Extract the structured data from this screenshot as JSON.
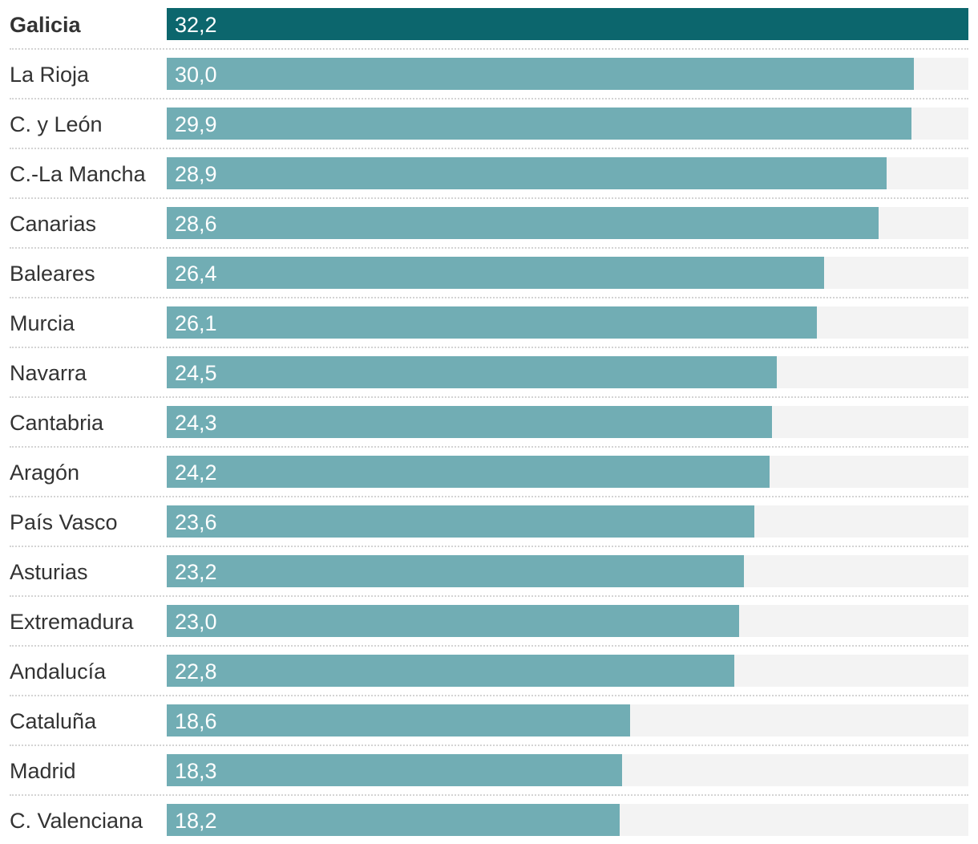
{
  "chart_data": {
    "type": "bar",
    "orientation": "horizontal",
    "highlight_category": "Galicia",
    "categories": [
      "Galicia",
      "La Rioja",
      "C. y León",
      "C.-La Mancha",
      "Canarias",
      "Baleares",
      "Murcia",
      "Navarra",
      "Cantabria",
      "Aragón",
      "País Vasco",
      "Asturias",
      "Extremadura",
      "Andalucía",
      "Cataluña",
      "Madrid",
      "C. Valenciana"
    ],
    "values": [
      32.2,
      30.0,
      29.9,
      28.9,
      28.6,
      26.4,
      26.1,
      24.5,
      24.3,
      24.2,
      23.6,
      23.2,
      23.0,
      22.8,
      18.6,
      18.3,
      18.2
    ],
    "value_labels": [
      "32,2",
      "30,0",
      "29,9",
      "28,9",
      "28,6",
      "26,4",
      "26,1",
      "24,5",
      "24,3",
      "24,2",
      "23,6",
      "23,2",
      "23,0",
      "22,8",
      "18,6",
      "18,3",
      "18,2"
    ],
    "xlim": [
      0,
      32.2
    ],
    "colors": {
      "highlight_bar": "#0c666d",
      "bar": "#71adb4",
      "track": "#f3f3f3",
      "label_text": "#333333",
      "value_text": "#ffffff"
    }
  }
}
